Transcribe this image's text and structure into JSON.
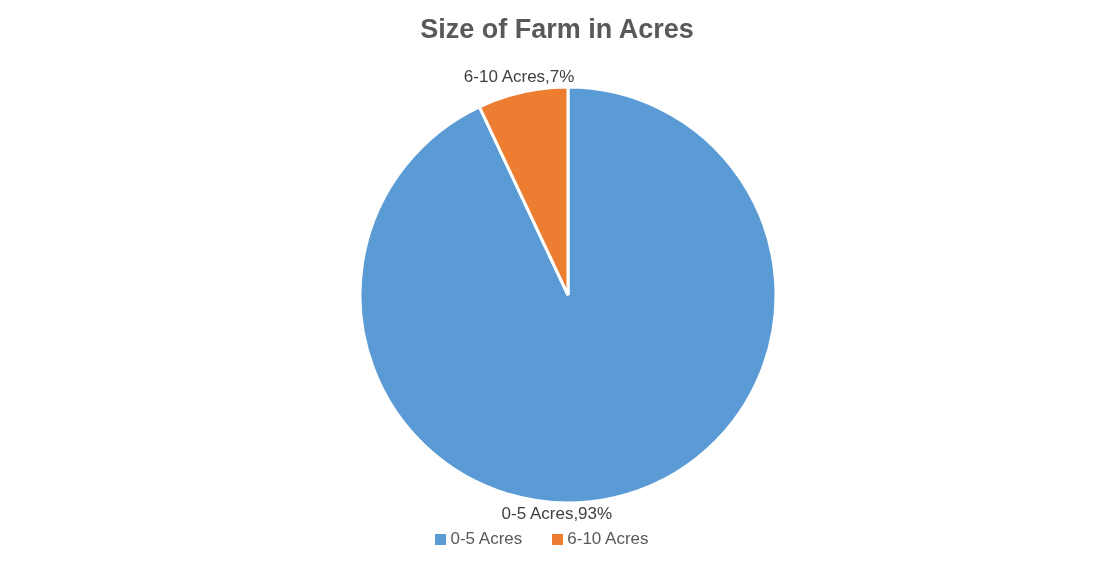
{
  "chart_data": {
    "type": "pie",
    "title": "Size of Farm in Acres",
    "categories": [
      "0-5 Acres",
      "6-10 Acres"
    ],
    "values": [
      93,
      7
    ],
    "colors": [
      "#5b9bd5",
      "#ed7d31"
    ],
    "value_labels": [
      "0-5 Acres,93%",
      "6-10 Acres,7%"
    ],
    "legend": "bottom"
  }
}
